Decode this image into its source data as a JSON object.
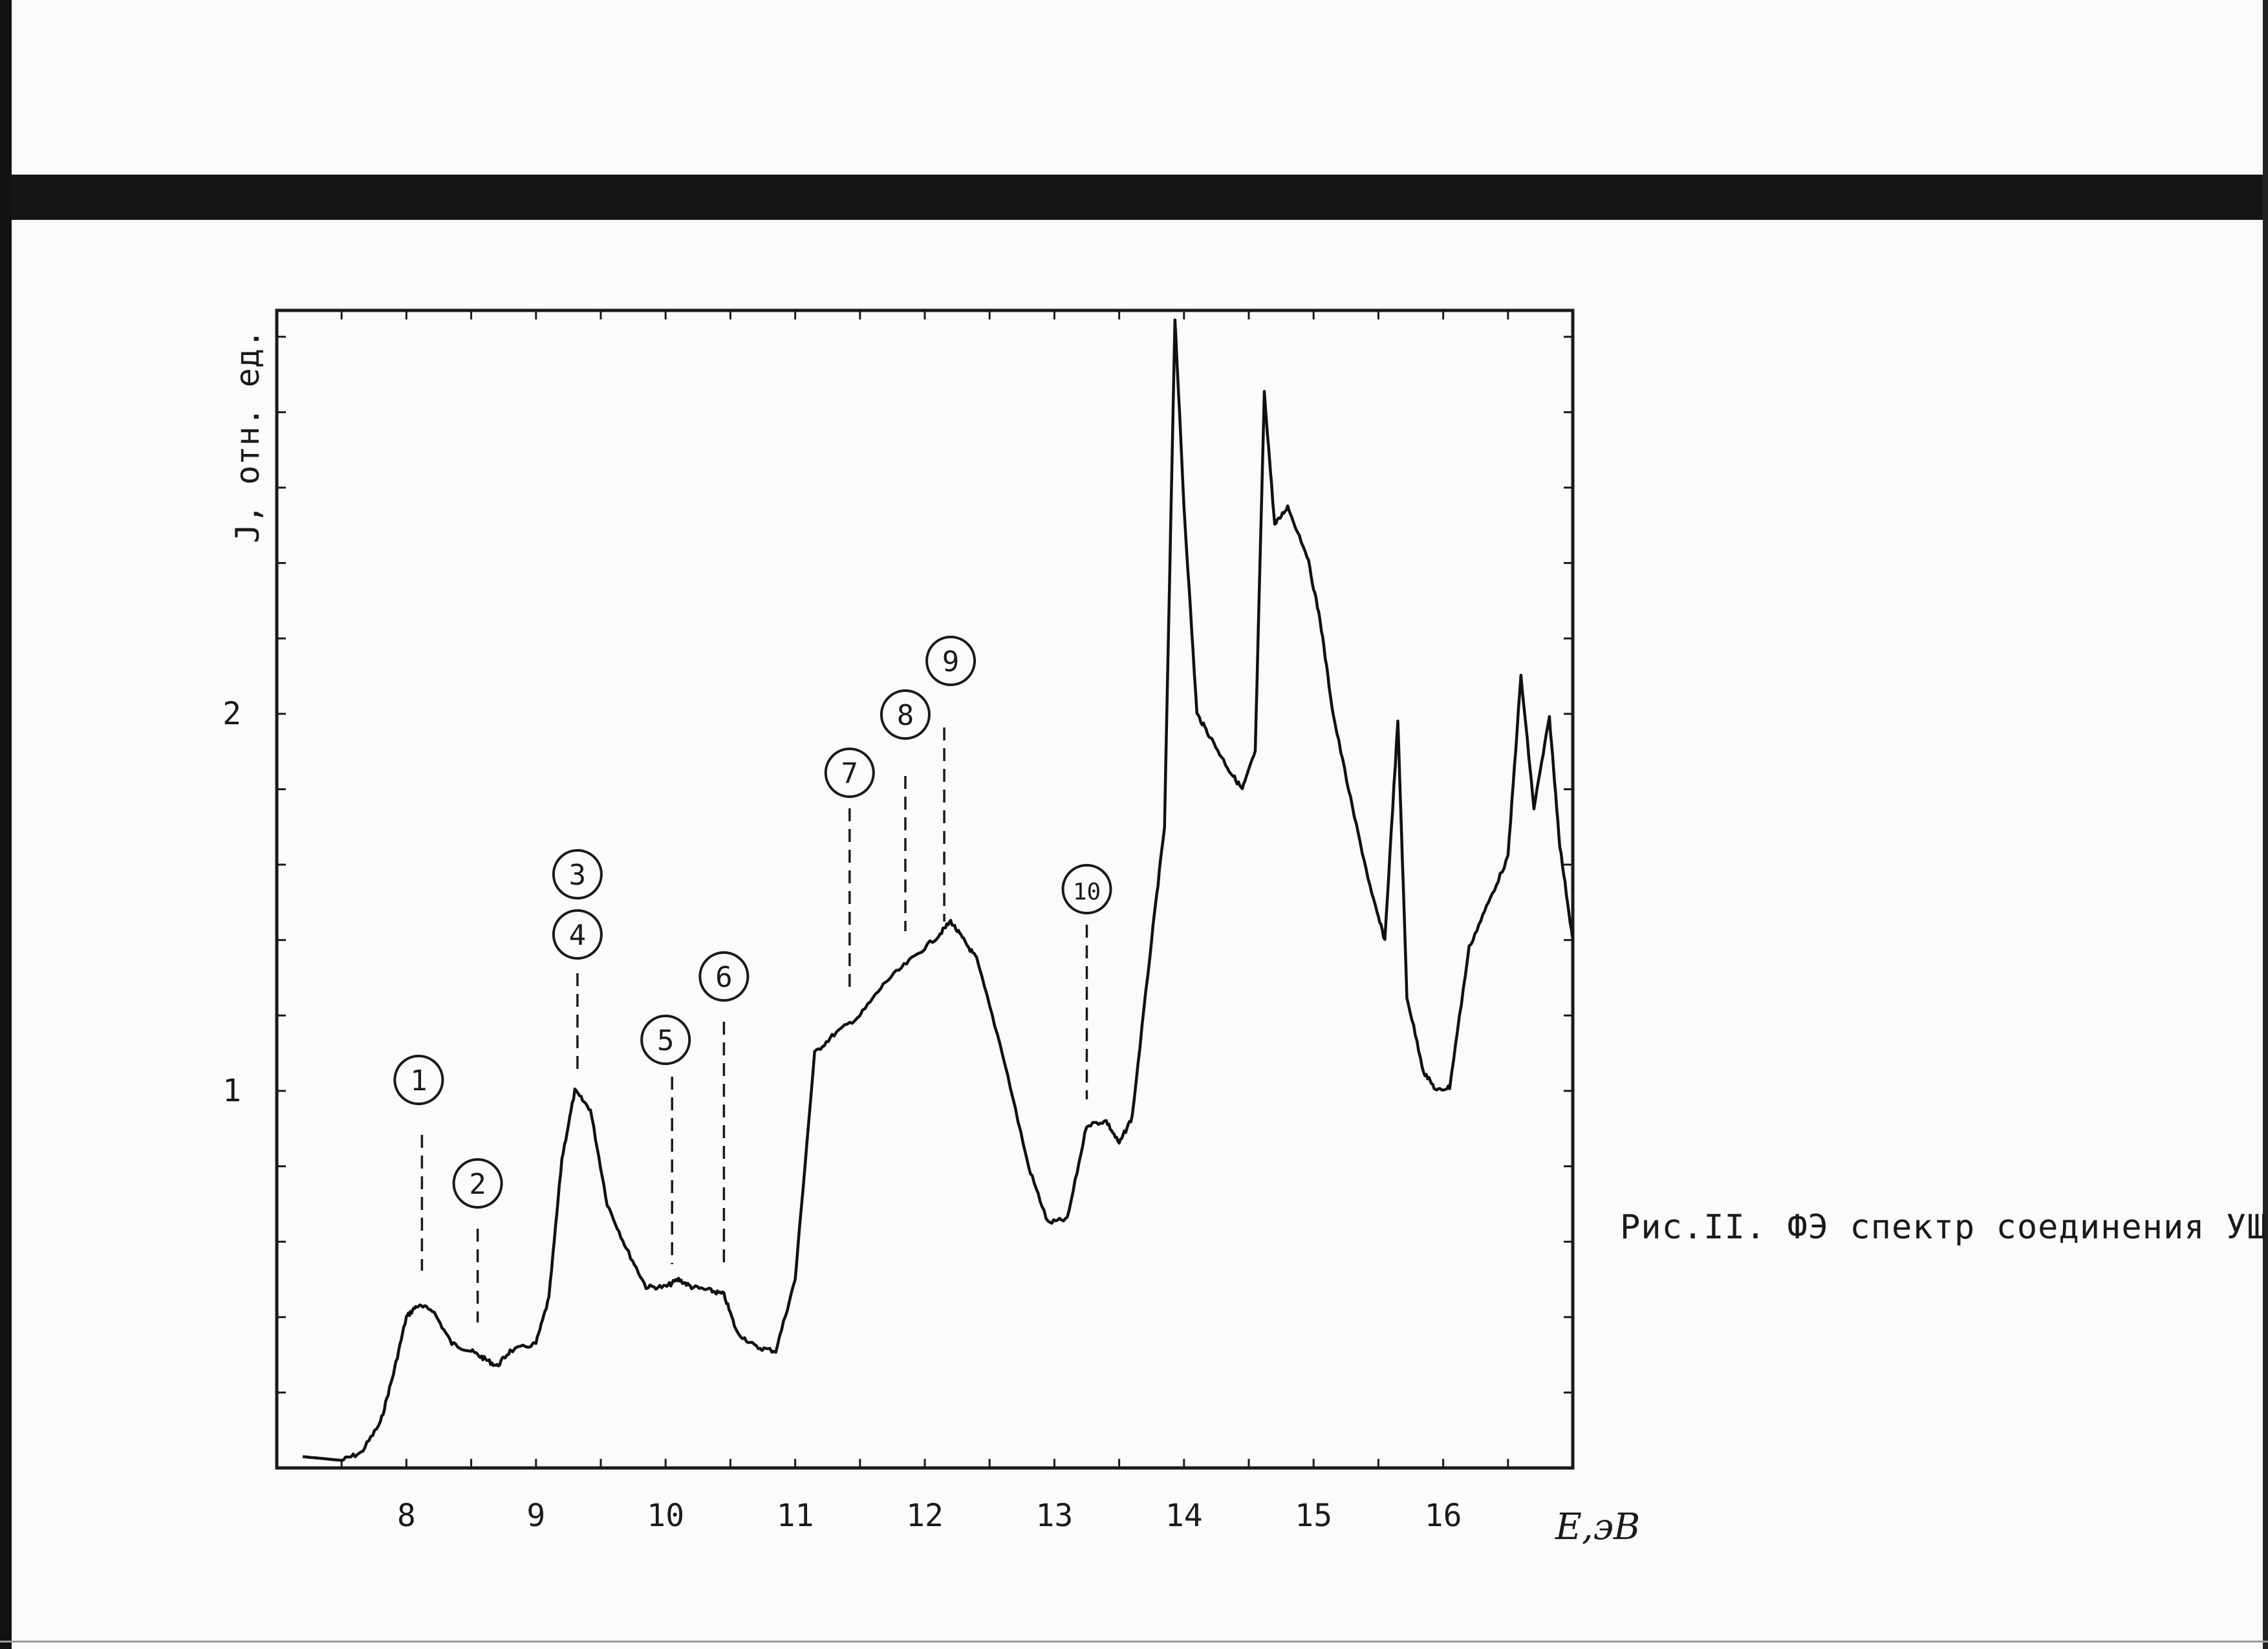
{
  "chart_data": {
    "type": "line",
    "xlabel": "E,эВ",
    "ylabel": "J, отн. ед.",
    "xlim": [
      7.0,
      17.0
    ],
    "ylim": [
      0.0,
      3.07
    ],
    "x_ticks": [
      8,
      9,
      10,
      11,
      12,
      13,
      14,
      15,
      16
    ],
    "y_ticks": [
      1,
      2
    ],
    "series": [
      {
        "points": [
          [
            7.2,
            0.03
          ],
          [
            7.5,
            0.02
          ],
          [
            7.65,
            0.04
          ],
          [
            7.8,
            0.12
          ],
          [
            7.9,
            0.25
          ],
          [
            8.0,
            0.4
          ],
          [
            8.08,
            0.43
          ],
          [
            8.2,
            0.42
          ],
          [
            8.35,
            0.33
          ],
          [
            8.5,
            0.31
          ],
          [
            8.6,
            0.29
          ],
          [
            8.7,
            0.27
          ],
          [
            8.8,
            0.31
          ],
          [
            9.0,
            0.33
          ],
          [
            9.1,
            0.45
          ],
          [
            9.2,
            0.82
          ],
          [
            9.3,
            1.0
          ],
          [
            9.42,
            0.95
          ],
          [
            9.55,
            0.7
          ],
          [
            9.7,
            0.58
          ],
          [
            9.85,
            0.48
          ],
          [
            10.0,
            0.48
          ],
          [
            10.1,
            0.5
          ],
          [
            10.2,
            0.48
          ],
          [
            10.35,
            0.47
          ],
          [
            10.45,
            0.46
          ],
          [
            10.55,
            0.36
          ],
          [
            10.7,
            0.32
          ],
          [
            10.85,
            0.31
          ],
          [
            11.0,
            0.5
          ],
          [
            11.15,
            1.1
          ],
          [
            11.3,
            1.15
          ],
          [
            11.5,
            1.2
          ],
          [
            11.7,
            1.29
          ],
          [
            11.9,
            1.35
          ],
          [
            12.1,
            1.41
          ],
          [
            12.2,
            1.45
          ],
          [
            12.3,
            1.4
          ],
          [
            12.4,
            1.35
          ],
          [
            12.6,
            1.1
          ],
          [
            12.8,
            0.8
          ],
          [
            12.95,
            0.65
          ],
          [
            13.1,
            0.66
          ],
          [
            13.25,
            0.91
          ],
          [
            13.4,
            0.92
          ],
          [
            13.5,
            0.86
          ],
          [
            13.6,
            0.93
          ],
          [
            13.75,
            1.4
          ],
          [
            13.85,
            1.7
          ],
          [
            13.93,
            3.05
          ],
          [
            14.0,
            2.55
          ],
          [
            14.1,
            2.0
          ],
          [
            14.2,
            1.94
          ],
          [
            14.35,
            1.85
          ],
          [
            14.45,
            1.8
          ],
          [
            14.55,
            1.9
          ],
          [
            14.62,
            2.85
          ],
          [
            14.7,
            2.5
          ],
          [
            14.8,
            2.55
          ],
          [
            14.95,
            2.42
          ],
          [
            15.05,
            2.25
          ],
          [
            15.15,
            2.0
          ],
          [
            15.3,
            1.75
          ],
          [
            15.45,
            1.52
          ],
          [
            15.55,
            1.4
          ],
          [
            15.65,
            1.98
          ],
          [
            15.72,
            1.25
          ],
          [
            15.85,
            1.05
          ],
          [
            15.95,
            1.0
          ],
          [
            16.05,
            1.01
          ],
          [
            16.2,
            1.38
          ],
          [
            16.35,
            1.5
          ],
          [
            16.5,
            1.62
          ],
          [
            16.6,
            2.1
          ],
          [
            16.7,
            1.75
          ],
          [
            16.82,
            1.99
          ],
          [
            16.9,
            1.65
          ],
          [
            17.0,
            1.4
          ]
        ]
      }
    ],
    "markers": [
      {
        "label": "1",
        "x": 8.12
      },
      {
        "label": "2",
        "x": 8.55
      },
      {
        "label": "3",
        "x": 9.32
      },
      {
        "label": "4",
        "x": 9.32
      },
      {
        "label": "5",
        "x": 10.05
      },
      {
        "label": "6",
        "x": 10.45
      },
      {
        "label": "7",
        "x": 11.42
      },
      {
        "label": "8",
        "x": 11.85
      },
      {
        "label": "9",
        "x": 12.15
      },
      {
        "label": "10",
        "x": 13.25
      }
    ]
  },
  "caption": "Рис.II. ФЭ спектр соединения УШ."
}
